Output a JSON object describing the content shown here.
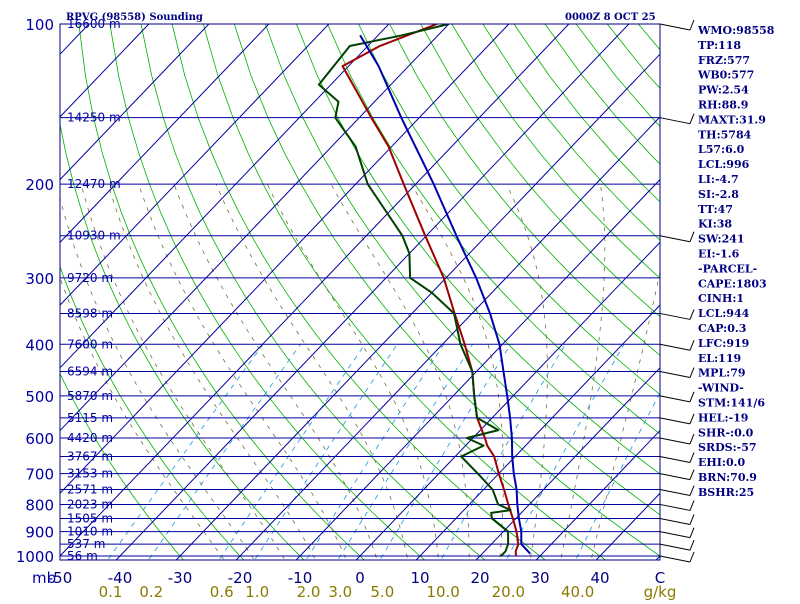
{
  "header": {
    "station": "RPVG (98558) Sounding",
    "time": "0000Z  8 OCT 25"
  },
  "indices": [
    "WMO:98558",
    "TP:118",
    "FRZ:577",
    "WB0:577",
    "PW:2.54",
    "RH:88.9",
    "MAXT:31.9",
    "TH:5784",
    "L57:6.0",
    "LCL:996",
    "LI:-4.7",
    "SI:-2.8",
    "TT:47",
    "KI:38",
    "SW:241",
    "EI:-1.6",
    "-PARCEL-",
    "CAPE:1803",
    "CINH:1",
    "LCL:944",
    "CAP:0.3",
    "LFC:919",
    "EL:119",
    "MPL:79",
    "-WIND-",
    "STM:141/6",
    "HEL:-19",
    "SHR-:0.0",
    "SRDS:-57",
    "EHI:0.0",
    "BRN:70.9",
    "BSHR:25"
  ],
  "chart_data": {
    "type": "line",
    "title": "RPVG (98558) Sounding",
    "subtitle": "0000Z  8 OCT 25",
    "diagram": "skew-T log-P",
    "pressure_unit": "mb",
    "temperature_unit": "C",
    "mixing_ratio_unit": "g/kg",
    "ylim": [
      1000,
      100
    ],
    "xlim": [
      -50,
      50
    ],
    "pressure_ticks": [
      {
        "p": 100,
        "label": "100"
      },
      {
        "p": 200,
        "label": "200"
      },
      {
        "p": 300,
        "label": "300"
      },
      {
        "p": 400,
        "label": "400"
      },
      {
        "p": 500,
        "label": "500"
      },
      {
        "p": 600,
        "label": "600"
      },
      {
        "p": 700,
        "label": "700"
      },
      {
        "p": 800,
        "label": "800"
      },
      {
        "p": 900,
        "label": "900"
      },
      {
        "p": 1000,
        "label": "1000"
      }
    ],
    "temperature_ticks": [
      {
        "t": -50,
        "label": "-50"
      },
      {
        "t": -40,
        "label": "-40"
      },
      {
        "t": -30,
        "label": "-30"
      },
      {
        "t": -20,
        "label": "-20"
      },
      {
        "t": -10,
        "label": "-10"
      },
      {
        "t": 0,
        "label": "0"
      },
      {
        "t": 10,
        "label": "10"
      },
      {
        "t": 20,
        "label": "20"
      },
      {
        "t": 30,
        "label": "30"
      },
      {
        "t": 40,
        "label": "40"
      },
      {
        "t": 50,
        "label": "C"
      }
    ],
    "mixing_ratio_ticks": [
      "0.1",
      "0.2",
      "0.6",
      "1.0",
      "2.0",
      "3.0",
      "5.0",
      "10.0",
      "20.0",
      "40.0",
      "g/kg"
    ],
    "mixing_ratio_values": [
      0.1,
      0.2,
      0.6,
      1.0,
      2.0,
      3.0,
      5.0,
      10.0,
      20.0,
      40.0
    ],
    "height_levels": [
      {
        "p": 100,
        "label": "16600 m"
      },
      {
        "p": 150,
        "label": "14250 m"
      },
      {
        "p": 200,
        "label": "12470 m"
      },
      {
        "p": 250,
        "label": "10930 m"
      },
      {
        "p": 300,
        "label": "9720 m"
      },
      {
        "p": 350,
        "label": "8598 m"
      },
      {
        "p": 400,
        "label": "7600 m"
      },
      {
        "p": 450,
        "label": "6594 m"
      },
      {
        "p": 500,
        "label": "5870 m"
      },
      {
        "p": 550,
        "label": "5115 m"
      },
      {
        "p": 600,
        "label": "4420 m"
      },
      {
        "p": 650,
        "label": "3767 m"
      },
      {
        "p": 700,
        "label": "3153 m"
      },
      {
        "p": 750,
        "label": "2571 m"
      },
      {
        "p": 800,
        "label": "2023 m"
      },
      {
        "p": 850,
        "label": "1505 m"
      },
      {
        "p": 900,
        "label": "1010 m"
      },
      {
        "p": 950,
        "label": "537 m"
      },
      {
        "p": 1000,
        "label": "56 m"
      }
    ],
    "series": [
      {
        "name": "Temperature",
        "color": "#a00000",
        "points": [
          {
            "p": 1000,
            "t": 26.0
          },
          {
            "p": 980,
            "t": 25.2
          },
          {
            "p": 950,
            "t": 24.5
          },
          {
            "p": 900,
            "t": 22.2
          },
          {
            "p": 850,
            "t": 19.5
          },
          {
            "p": 800,
            "t": 16.5
          },
          {
            "p": 750,
            "t": 13.4
          },
          {
            "p": 700,
            "t": 10.0
          },
          {
            "p": 650,
            "t": 6.5
          },
          {
            "p": 620,
            "t": 3.6
          },
          {
            "p": 600,
            "t": 2.0
          },
          {
            "p": 550,
            "t": -2.5
          },
          {
            "p": 500,
            "t": -6.5
          },
          {
            "p": 450,
            "t": -10.7
          },
          {
            "p": 400,
            "t": -16.3
          },
          {
            "p": 350,
            "t": -22.9
          },
          {
            "p": 300,
            "t": -30.4
          },
          {
            "p": 250,
            "t": -40.2
          },
          {
            "p": 200,
            "t": -52.0
          },
          {
            "p": 170,
            "t": -60.5
          },
          {
            "p": 150,
            "t": -68.0
          },
          {
            "p": 120,
            "t": -81.0
          },
          {
            "p": 110,
            "t": -78.0
          },
          {
            "p": 100,
            "t": -72.0
          }
        ]
      },
      {
        "name": "Dew point",
        "color": "#004000",
        "points": [
          {
            "p": 1000,
            "t": 23.5
          },
          {
            "p": 980,
            "t": 23.5
          },
          {
            "p": 950,
            "t": 22.8
          },
          {
            "p": 900,
            "t": 20.8
          },
          {
            "p": 850,
            "t": 16.0
          },
          {
            "p": 830,
            "t": 15.0
          },
          {
            "p": 820,
            "t": 17.8
          },
          {
            "p": 800,
            "t": 14.8
          },
          {
            "p": 750,
            "t": 11.5
          },
          {
            "p": 700,
            "t": 6.5
          },
          {
            "p": 650,
            "t": 1.0
          },
          {
            "p": 620,
            "t": 3.0
          },
          {
            "p": 600,
            "t": -1.0
          },
          {
            "p": 580,
            "t": 3.0
          },
          {
            "p": 550,
            "t": -2.5
          },
          {
            "p": 500,
            "t": -6.5
          },
          {
            "p": 450,
            "t": -10.7
          },
          {
            "p": 400,
            "t": -17.0
          },
          {
            "p": 350,
            "t": -23.0
          },
          {
            "p": 320,
            "t": -30.0
          },
          {
            "p": 300,
            "t": -36.0
          },
          {
            "p": 270,
            "t": -40.0
          },
          {
            "p": 250,
            "t": -44.0
          },
          {
            "p": 200,
            "t": -58.0
          },
          {
            "p": 170,
            "t": -66.0
          },
          {
            "p": 150,
            "t": -74.0
          },
          {
            "p": 140,
            "t": -76.0
          },
          {
            "p": 130,
            "t": -82.0
          },
          {
            "p": 110,
            "t": -83.0
          },
          {
            "p": 105,
            "t": -76.0
          },
          {
            "p": 100,
            "t": -70.0
          }
        ]
      },
      {
        "name": "Parcel",
        "color": "#0000b0",
        "points": [
          {
            "p": 990,
            "t": 28.0
          },
          {
            "p": 950,
            "t": 25.0
          },
          {
            "p": 900,
            "t": 23.0
          },
          {
            "p": 850,
            "t": 20.5
          },
          {
            "p": 800,
            "t": 18.0
          },
          {
            "p": 750,
            "t": 15.5
          },
          {
            "p": 700,
            "t": 12.5
          },
          {
            "p": 650,
            "t": 9.5
          },
          {
            "p": 600,
            "t": 6.5
          },
          {
            "p": 550,
            "t": 3.0
          },
          {
            "p": 500,
            "t": -1.0
          },
          {
            "p": 450,
            "t": -5.5
          },
          {
            "p": 400,
            "t": -10.5
          },
          {
            "p": 350,
            "t": -17.0
          },
          {
            "p": 300,
            "t": -25.0
          },
          {
            "p": 250,
            "t": -35.0
          },
          {
            "p": 200,
            "t": -47.0
          },
          {
            "p": 150,
            "t": -63.0
          },
          {
            "p": 120,
            "t": -75.0
          },
          {
            "p": 105,
            "t": -83.0
          }
        ]
      }
    ],
    "wind_barbs_p": [
      100,
      150,
      250,
      350,
      400,
      450,
      500,
      550,
      600,
      650,
      700,
      750,
      800,
      850,
      900,
      950,
      1000
    ]
  }
}
